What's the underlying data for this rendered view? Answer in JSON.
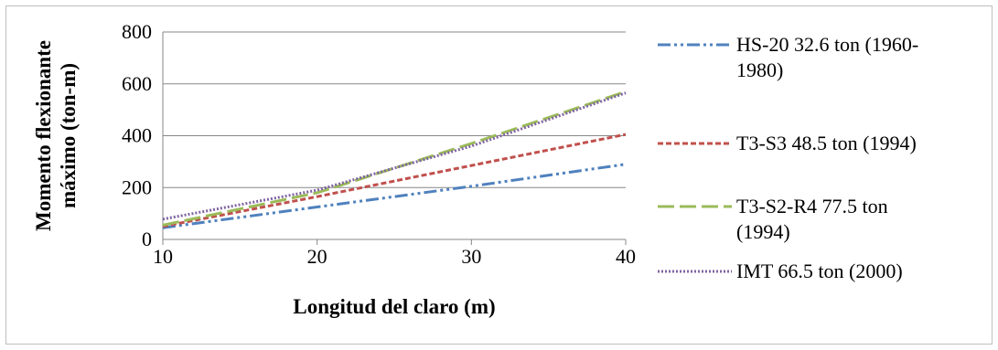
{
  "chart_data": {
    "type": "line",
    "xlabel": "Longitud del claro (m)",
    "ylabel_lines": [
      "Momento flexionante",
      "máximo (ton-m)"
    ],
    "xlim": [
      10,
      40
    ],
    "ylim": [
      0,
      800
    ],
    "x_ticks": [
      "10",
      "20",
      "30",
      "40"
    ],
    "y_ticks": [
      "0",
      "200",
      "400",
      "600",
      "800"
    ],
    "grid": "horizontal",
    "legend_position": "right",
    "series": [
      {
        "name": "HS-20 32.6 ton (1960-1980)",
        "legend_lines": [
          "HS-20 32.6 ton (1960-",
          "1980)"
        ],
        "color": "#4f81bd",
        "dash": "dash-dot-dot",
        "x": [
          10,
          20,
          30,
          40
        ],
        "values": [
          45,
          125,
          205,
          290
        ]
      },
      {
        "name": "T3-S3 48.5 ton (1994)",
        "legend_lines": [
          "T3-S3 48.5 ton (1994)"
        ],
        "color": "#c0504d",
        "dash": "short-dash",
        "x": [
          10,
          20,
          30,
          40
        ],
        "values": [
          50,
          165,
          285,
          405
        ]
      },
      {
        "name": "T3-S2-R4 77.5 ton (1994)",
        "legend_lines": [
          "T3-S2-R4 77.5 ton",
          "(1994)"
        ],
        "color": "#9bbb59",
        "dash": "long-dash",
        "x": [
          10,
          20,
          30,
          40
        ],
        "values": [
          55,
          180,
          370,
          570
        ]
      },
      {
        "name": "IMT 66.5 ton (2000)",
        "legend_lines": [
          "IMT 66.5 ton (2000)"
        ],
        "color": "#8064a2",
        "dash": "dot",
        "x": [
          10,
          20,
          30,
          40
        ],
        "values": [
          78,
          190,
          360,
          565
        ]
      }
    ]
  }
}
